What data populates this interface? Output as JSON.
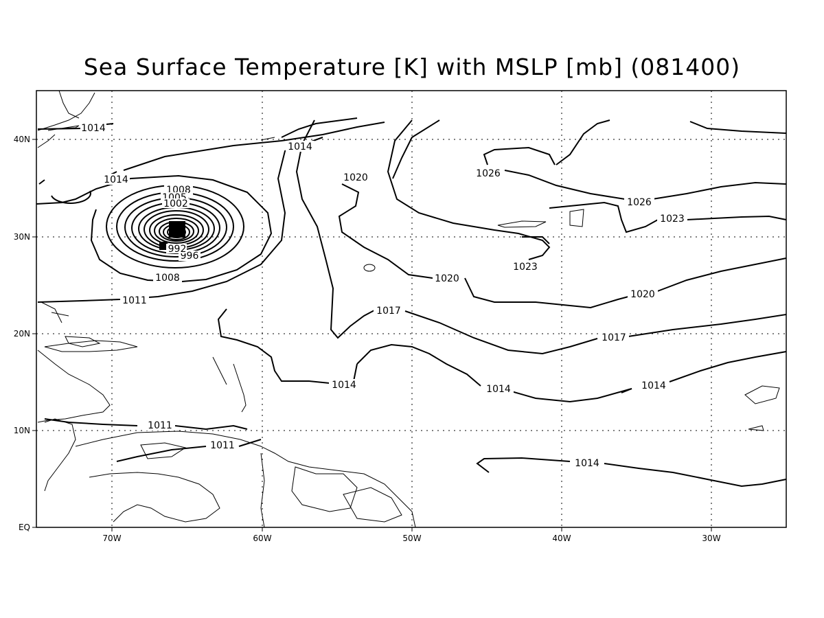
{
  "title": "Sea Surface Temperature [K] with MSLP [mb] (081400)",
  "map": {
    "lon_range": [
      "75W",
      "25W"
    ],
    "lat_range": [
      "EQ",
      "45N"
    ],
    "grid": "dotted",
    "x_ticks": [
      "70W",
      "60W",
      "50W",
      "40W",
      "30W"
    ],
    "y_ticks": [
      "EQ",
      "10N",
      "20N",
      "30N",
      "40N"
    ],
    "contour_labels": [
      "1014",
      "1014",
      "1014",
      "1008",
      "1005",
      "1002",
      "996",
      "992",
      "1008",
      "1011",
      "1020",
      "1020",
      "1026",
      "1026",
      "1023",
      "1023",
      "1020",
      "1017",
      "1017",
      "1014",
      "1014",
      "1014",
      "1011",
      "1011",
      "1014"
    ]
  },
  "icons": {
    "storm_center": "low-pressure-center"
  }
}
